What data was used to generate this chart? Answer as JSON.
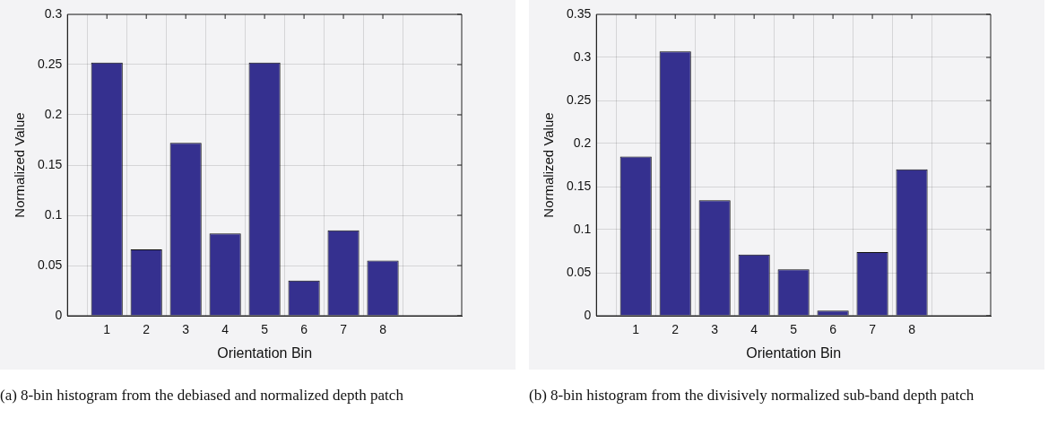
{
  "chart_data": [
    {
      "type": "bar",
      "x": [
        1,
        2,
        3,
        4,
        5,
        6,
        7,
        8
      ],
      "values": [
        0.252,
        0.066,
        0.172,
        0.082,
        0.252,
        0.035,
        0.085,
        0.055
      ],
      "color": "#35308f",
      "xlabel": "Orientation Bin",
      "ylabel": "Normalized Value",
      "xlim": [
        0,
        10
      ],
      "xticks": [
        1,
        2,
        3,
        4,
        5,
        6,
        7,
        8
      ],
      "ylim": [
        0,
        0.3
      ],
      "yticks": [
        0,
        0.05,
        0.1,
        0.15,
        0.2,
        0.25,
        0.3
      ],
      "grid": true,
      "legend": false,
      "annotations": [
        "(a) 8-bin histogram from the debiased and normalized depth patch"
      ]
    },
    {
      "type": "bar",
      "x": [
        1,
        2,
        3,
        4,
        5,
        6,
        7,
        8
      ],
      "values": [
        0.185,
        0.307,
        0.134,
        0.071,
        0.054,
        0.006,
        0.074,
        0.17
      ],
      "color": "#35308f",
      "xlabel": "Orientation Bin",
      "ylabel": "Normalized Value",
      "xlim": [
        0,
        10
      ],
      "xticks": [
        1,
        2,
        3,
        4,
        5,
        6,
        7,
        8
      ],
      "ylim": [
        0,
        0.35
      ],
      "yticks": [
        0,
        0.05,
        0.1,
        0.15,
        0.2,
        0.25,
        0.3,
        0.35
      ],
      "grid": true,
      "legend": false,
      "annotations": [
        "(b) 8-bin histogram from the divisively normalized sub-band depth patch"
      ]
    }
  ]
}
